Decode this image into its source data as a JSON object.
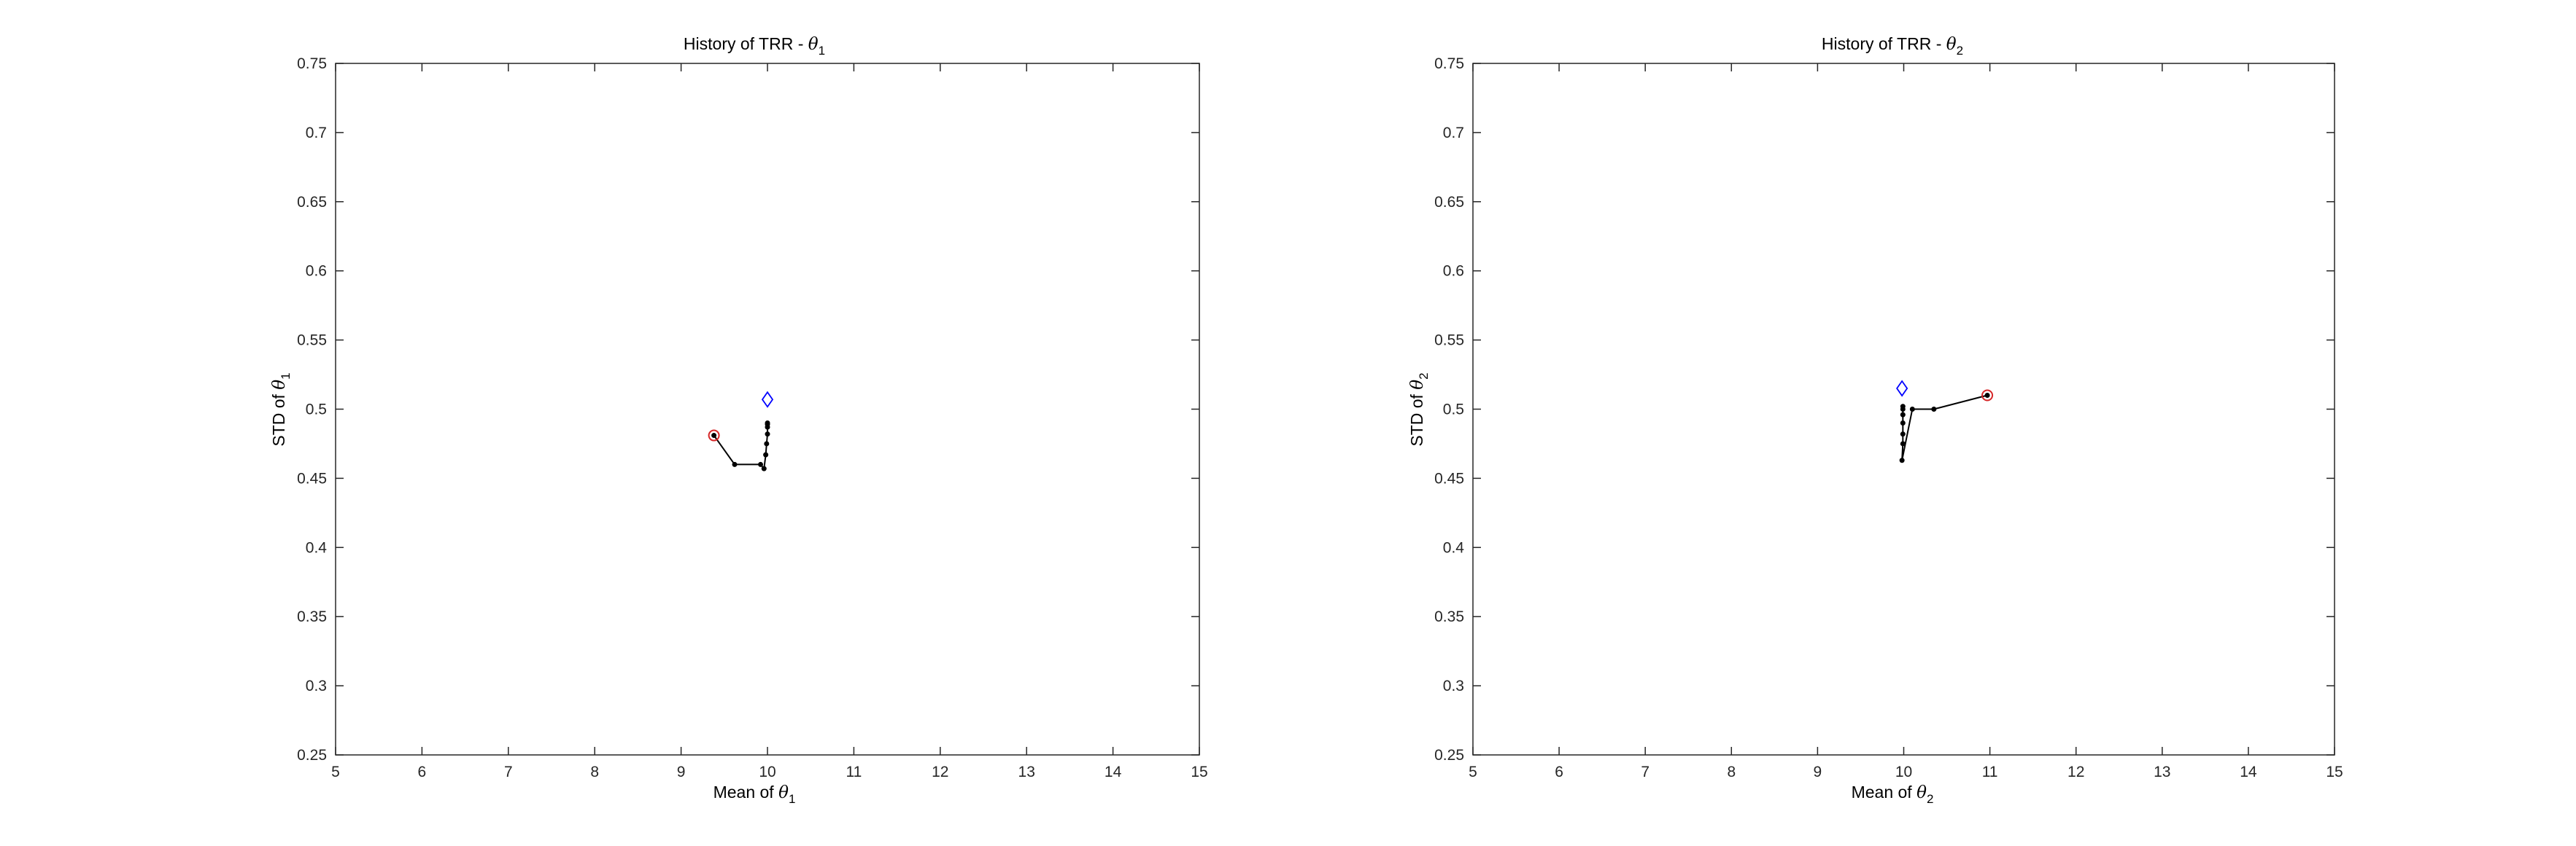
{
  "chart_data": [
    {
      "type": "line",
      "title": "History of TRR - θ1",
      "title_parts": {
        "prefix": "History of TRR - ",
        "symbol": "θ",
        "subscript": "1"
      },
      "xlabel": "Mean of θ1",
      "xlabel_parts": {
        "prefix": "Mean of ",
        "symbol": "θ",
        "subscript": "1"
      },
      "ylabel": "STD of θ1",
      "ylabel_parts": {
        "prefix": "STD of ",
        "symbol": "θ",
        "subscript": "1"
      },
      "xlim": [
        5,
        15
      ],
      "ylim": [
        0.25,
        0.75
      ],
      "xticks": [
        5,
        6,
        7,
        8,
        9,
        10,
        11,
        12,
        13,
        14,
        15
      ],
      "yticks": [
        0.25,
        0.3,
        0.35,
        0.4,
        0.45,
        0.5,
        0.55,
        0.6,
        0.65,
        0.7,
        0.75
      ],
      "xtick_labels": [
        "5",
        "6",
        "7",
        "8",
        "9",
        "10",
        "11",
        "12",
        "13",
        "14",
        "15"
      ],
      "ytick_labels": [
        "0.25",
        "0.3",
        "0.35",
        "0.4",
        "0.45",
        "0.5",
        "0.55",
        "0.6",
        "0.65",
        "0.7",
        "0.75"
      ],
      "grid": false,
      "legend": "none",
      "colors": {
        "path": "#000000",
        "start": "#d62728",
        "target": "#0000ff"
      },
      "series": [
        {
          "x": [
            9.38,
            9.62,
            9.92,
            9.96,
            9.98,
            9.99,
            10.0,
            10.0,
            10.0,
            10.0
          ],
          "y": [
            0.481,
            0.46,
            0.46,
            0.457,
            0.467,
            0.475,
            0.482,
            0.487,
            0.489,
            0.49
          ]
        }
      ],
      "start_point": {
        "x": 9.38,
        "y": 0.481
      },
      "target_point": {
        "x": 10.0,
        "y": 0.507
      }
    },
    {
      "type": "line",
      "title": "History of TRR - θ2",
      "title_parts": {
        "prefix": "History of TRR - ",
        "symbol": "θ",
        "subscript": "2"
      },
      "xlabel": "Mean of θ2",
      "xlabel_parts": {
        "prefix": "Mean of ",
        "symbol": "θ",
        "subscript": "2"
      },
      "ylabel": "STD of θ2",
      "ylabel_parts": {
        "prefix": "STD of ",
        "symbol": "θ",
        "subscript": "2"
      },
      "xlim": [
        5,
        15
      ],
      "ylim": [
        0.25,
        0.75
      ],
      "xticks": [
        5,
        6,
        7,
        8,
        9,
        10,
        11,
        12,
        13,
        14,
        15
      ],
      "yticks": [
        0.25,
        0.3,
        0.35,
        0.4,
        0.45,
        0.5,
        0.55,
        0.6,
        0.65,
        0.7,
        0.75
      ],
      "xtick_labels": [
        "5",
        "6",
        "7",
        "8",
        "9",
        "10",
        "11",
        "12",
        "13",
        "14",
        "15"
      ],
      "ytick_labels": [
        "0.25",
        "0.3",
        "0.35",
        "0.4",
        "0.45",
        "0.5",
        "0.55",
        "0.6",
        "0.65",
        "0.7",
        "0.75"
      ],
      "grid": false,
      "legend": "none",
      "colors": {
        "path": "#000000",
        "start": "#d62728",
        "target": "#0000ff"
      },
      "series": [
        {
          "x": [
            10.97,
            10.35,
            10.1,
            9.98,
            9.99,
            9.99,
            9.99,
            9.99,
            9.99,
            9.99
          ],
          "y": [
            0.51,
            0.5,
            0.5,
            0.463,
            0.475,
            0.482,
            0.49,
            0.496,
            0.5,
            0.502
          ]
        }
      ],
      "start_point": {
        "x": 10.97,
        "y": 0.51
      },
      "target_point": {
        "x": 9.98,
        "y": 0.515
      }
    }
  ]
}
